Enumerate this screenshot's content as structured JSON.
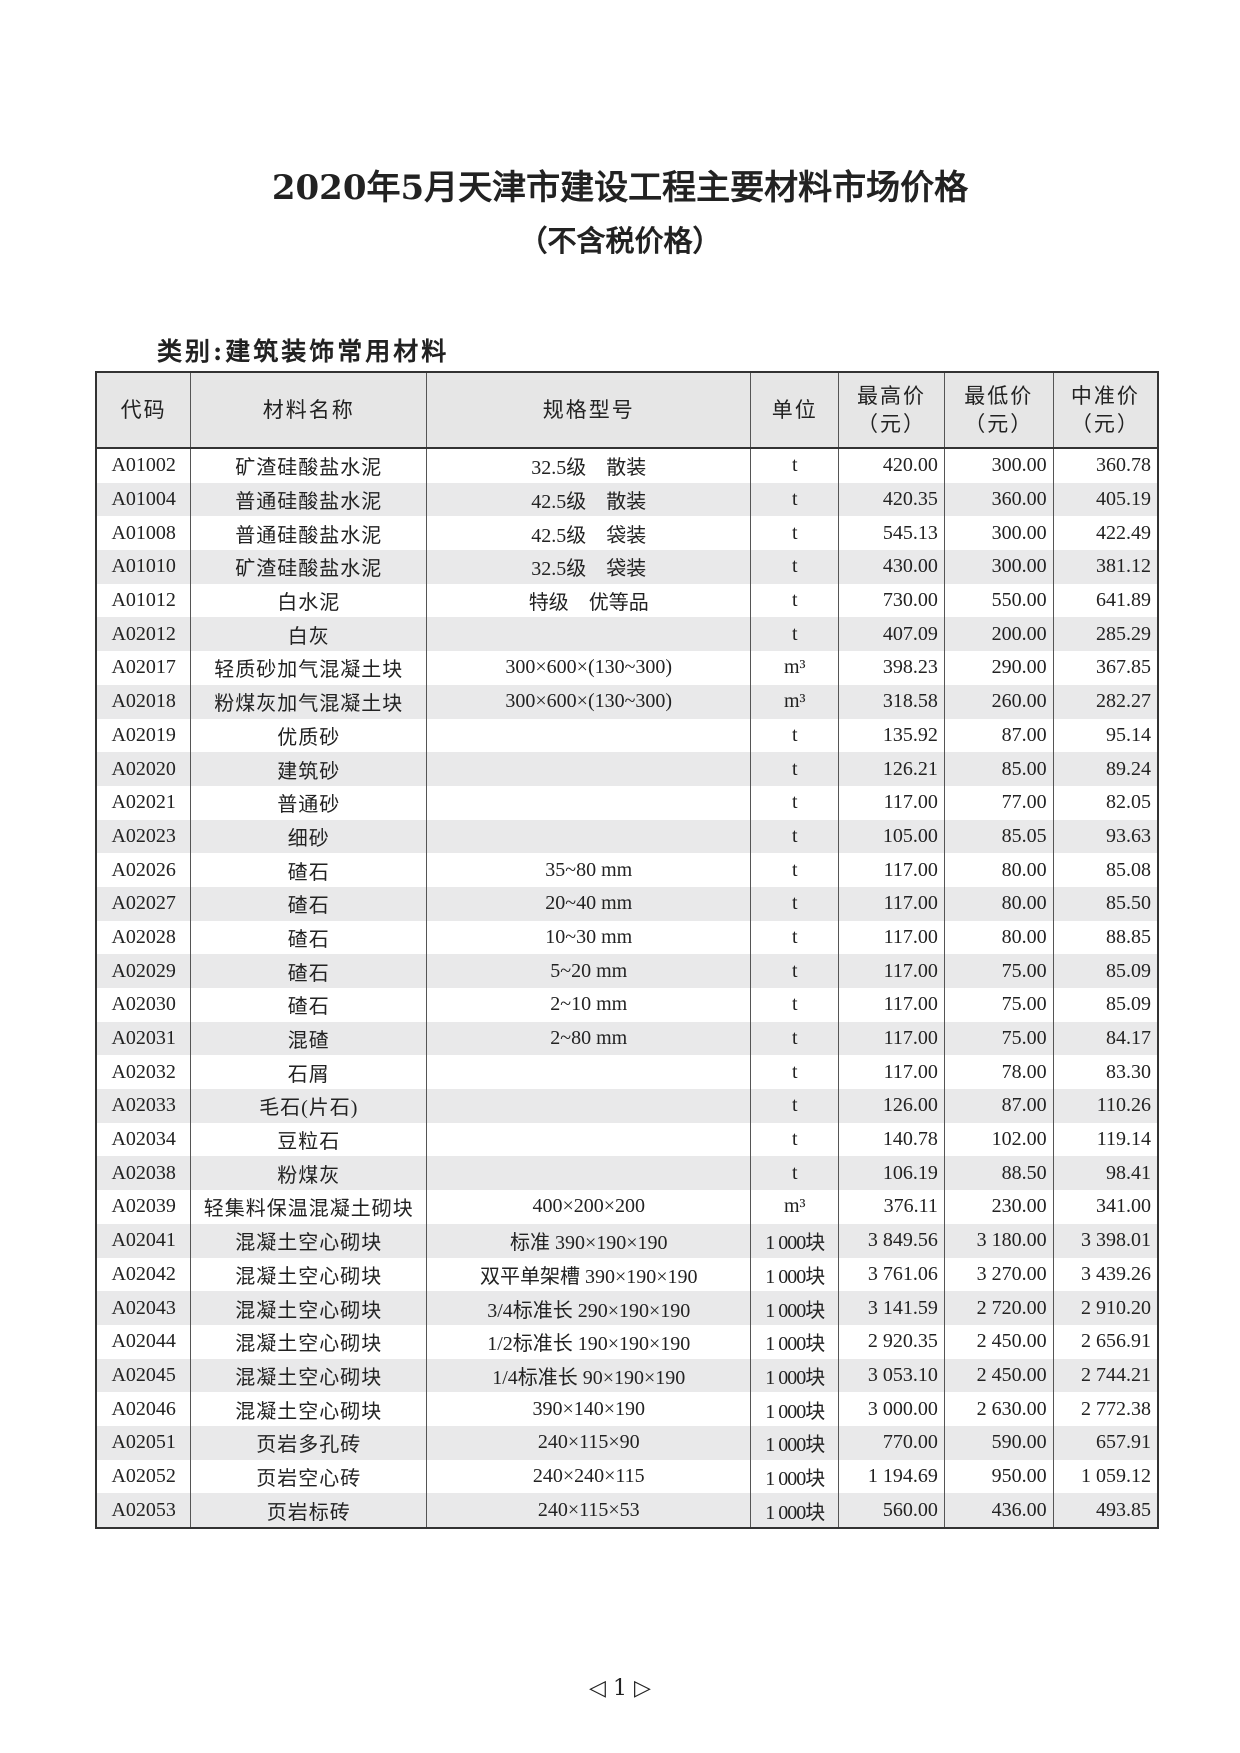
{
  "title": "2020年5月天津市建设工程主要材料市场价格",
  "subtitle": "（不含税价格）",
  "category": "类别:建筑装饰常用材料",
  "columns": [
    "代码",
    "材料名称",
    "规格型号",
    "单位",
    "最高价（元）",
    "最低价（元）",
    "中准价（元）"
  ],
  "rows": [
    [
      "A01002",
      "矿渣硅酸盐水泥",
      "32.5级　散装",
      "t",
      "420.00",
      "300.00",
      "360.78"
    ],
    [
      "A01004",
      "普通硅酸盐水泥",
      "42.5级　散装",
      "t",
      "420.35",
      "360.00",
      "405.19"
    ],
    [
      "A01008",
      "普通硅酸盐水泥",
      "42.5级　袋装",
      "t",
      "545.13",
      "300.00",
      "422.49"
    ],
    [
      "A01010",
      "矿渣硅酸盐水泥",
      "32.5级　袋装",
      "t",
      "430.00",
      "300.00",
      "381.12"
    ],
    [
      "A01012",
      "白水泥",
      "特级　优等品",
      "t",
      "730.00",
      "550.00",
      "641.89"
    ],
    [
      "A02012",
      "白灰",
      "",
      "t",
      "407.09",
      "200.00",
      "285.29"
    ],
    [
      "A02017",
      "轻质砂加气混凝土块",
      "300×600×(130~300)",
      "m³",
      "398.23",
      "290.00",
      "367.85"
    ],
    [
      "A02018",
      "粉煤灰加气混凝土块",
      "300×600×(130~300)",
      "m³",
      "318.58",
      "260.00",
      "282.27"
    ],
    [
      "A02019",
      "优质砂",
      "",
      "t",
      "135.92",
      "87.00",
      "95.14"
    ],
    [
      "A02020",
      "建筑砂",
      "",
      "t",
      "126.21",
      "85.00",
      "89.24"
    ],
    [
      "A02021",
      "普通砂",
      "",
      "t",
      "117.00",
      "77.00",
      "82.05"
    ],
    [
      "A02023",
      "细砂",
      "",
      "t",
      "105.00",
      "85.05",
      "93.63"
    ],
    [
      "A02026",
      "碴石",
      "35~80 mm",
      "t",
      "117.00",
      "80.00",
      "85.08"
    ],
    [
      "A02027",
      "碴石",
      "20~40 mm",
      "t",
      "117.00",
      "80.00",
      "85.50"
    ],
    [
      "A02028",
      "碴石",
      "10~30 mm",
      "t",
      "117.00",
      "80.00",
      "88.85"
    ],
    [
      "A02029",
      "碴石",
      "5~20 mm",
      "t",
      "117.00",
      "75.00",
      "85.09"
    ],
    [
      "A02030",
      "碴石",
      "2~10 mm",
      "t",
      "117.00",
      "75.00",
      "85.09"
    ],
    [
      "A02031",
      "混碴",
      "2~80 mm",
      "t",
      "117.00",
      "75.00",
      "84.17"
    ],
    [
      "A02032",
      "石屑",
      "",
      "t",
      "117.00",
      "78.00",
      "83.30"
    ],
    [
      "A02033",
      "毛石(片石)",
      "",
      "t",
      "126.00",
      "87.00",
      "110.26"
    ],
    [
      "A02034",
      "豆粒石",
      "",
      "t",
      "140.78",
      "102.00",
      "119.14"
    ],
    [
      "A02038",
      "粉煤灰",
      "",
      "t",
      "106.19",
      "88.50",
      "98.41"
    ],
    [
      "A02039",
      "轻集料保温混凝土砌块",
      "400×200×200",
      "m³",
      "376.11",
      "230.00",
      "341.00"
    ],
    [
      "A02041",
      "混凝土空心砌块",
      "标准 390×190×190",
      "1 000块",
      "3 849.56",
      "3 180.00",
      "3 398.01"
    ],
    [
      "A02042",
      "混凝土空心砌块",
      "双平单架槽 390×190×190",
      "1 000块",
      "3 761.06",
      "3 270.00",
      "3 439.26"
    ],
    [
      "A02043",
      "混凝土空心砌块",
      "3/4标准长 290×190×190",
      "1 000块",
      "3 141.59",
      "2 720.00",
      "2 910.20"
    ],
    [
      "A02044",
      "混凝土空心砌块",
      "1/2标准长 190×190×190",
      "1 000块",
      "2 920.35",
      "2 450.00",
      "2 656.91"
    ],
    [
      "A02045",
      "混凝土空心砌块",
      "1/4标准长 90×190×190",
      "1 000块",
      "3 053.10",
      "2 450.00",
      "2 744.21"
    ],
    [
      "A02046",
      "混凝土空心砌块",
      "390×140×190",
      "1 000块",
      "3 000.00",
      "2 630.00",
      "2 772.38"
    ],
    [
      "A02051",
      "页岩多孔砖",
      "240×115×90",
      "1 000块",
      "770.00",
      "590.00",
      "657.91"
    ],
    [
      "A02052",
      "页岩空心砖",
      "240×240×115",
      "1 000块",
      "1 194.69",
      "950.00",
      "1 059.12"
    ],
    [
      "A02053",
      "页岩标砖",
      "240×115×53",
      "1 000块",
      "560.00",
      "436.00",
      "493.85"
    ]
  ],
  "footer": {
    "page_number": "1",
    "prev": "◁",
    "next": "▷"
  }
}
